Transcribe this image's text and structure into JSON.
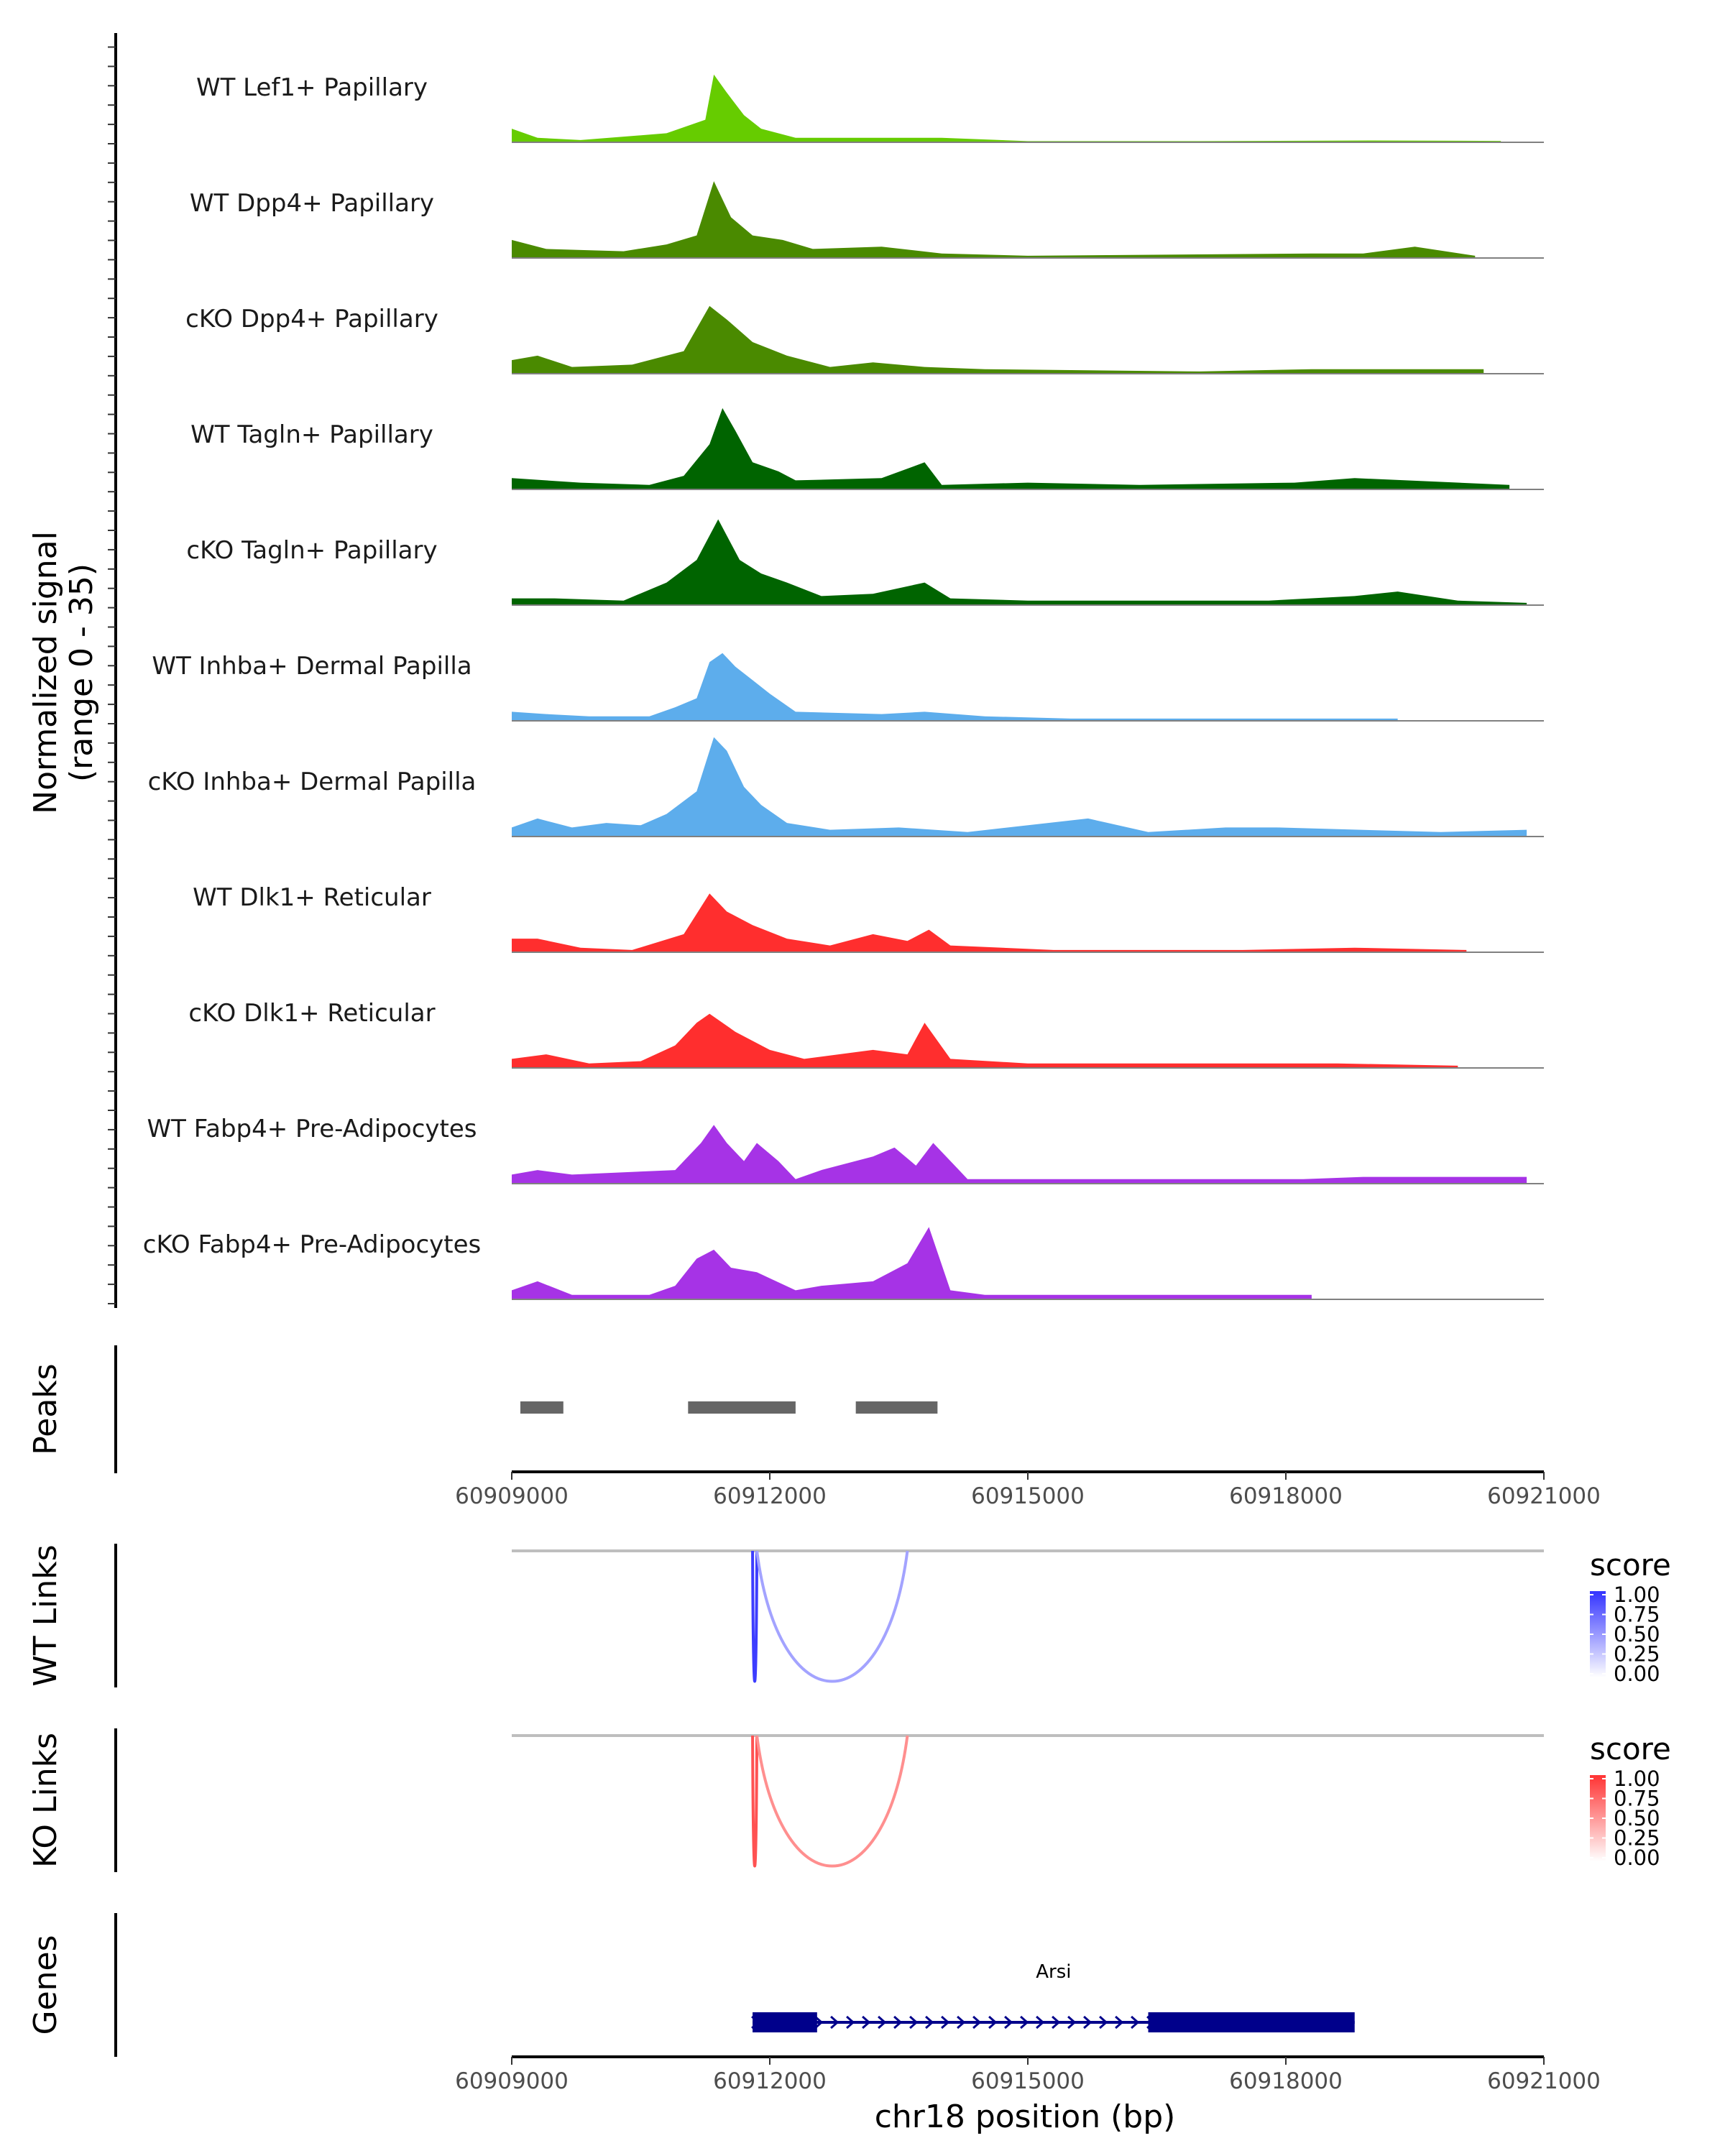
{
  "chart_data": [
    {
      "type": "area",
      "title": "",
      "ylabel_line1": "Normalized signal",
      "ylabel_line2": "(range 0 - 35)",
      "ylim": [
        0,
        35
      ],
      "xlim": [
        60909000,
        60921000
      ],
      "x_ticks": [
        60909000,
        60912000,
        60915000,
        60918000,
        60921000
      ],
      "x_tick_labels": [
        "60909000",
        "60912000",
        "60915000",
        "60918000",
        "60921000"
      ],
      "xlabel": "chr18 position (bp)",
      "tracks": [
        {
          "name": "WT Lef1+ Papillary",
          "color": "#66CC00",
          "values": [
            [
              60909000,
              6
            ],
            [
              60909300,
              2
            ],
            [
              60909800,
              1
            ],
            [
              60910800,
              4
            ],
            [
              60911250,
              10
            ],
            [
              60911350,
              30
            ],
            [
              60911500,
              22
            ],
            [
              60911700,
              12
            ],
            [
              60911900,
              6
            ],
            [
              60912300,
              2
            ],
            [
              60912900,
              2
            ],
            [
              60913500,
              2
            ],
            [
              60914000,
              2
            ],
            [
              60915000,
              0.5
            ],
            [
              60917000,
              0.5
            ],
            [
              60919000,
              0.8
            ],
            [
              60920500,
              0.6
            ]
          ]
        },
        {
          "name": "WT Dpp4+ Papillary",
          "color": "#4A8A00",
          "values": [
            [
              60909000,
              8
            ],
            [
              60909400,
              4
            ],
            [
              60910300,
              3
            ],
            [
              60910800,
              6
            ],
            [
              60911150,
              10
            ],
            [
              60911350,
              34
            ],
            [
              60911550,
              18
            ],
            [
              60911800,
              10
            ],
            [
              60912150,
              8
            ],
            [
              60912500,
              4
            ],
            [
              60913300,
              5
            ],
            [
              60914000,
              2
            ],
            [
              60915000,
              1
            ],
            [
              60918300,
              2
            ],
            [
              60918900,
              2
            ],
            [
              60919500,
              5
            ],
            [
              60920200,
              1
            ]
          ]
        },
        {
          "name": "cKO Dpp4+ Papillary",
          "color": "#4A8A00",
          "values": [
            [
              60909000,
              6
            ],
            [
              60909300,
              8
            ],
            [
              60909700,
              3
            ],
            [
              60910400,
              4
            ],
            [
              60911000,
              10
            ],
            [
              60911300,
              30
            ],
            [
              60911500,
              24
            ],
            [
              60911800,
              14
            ],
            [
              60912200,
              8
            ],
            [
              60912700,
              3
            ],
            [
              60913200,
              5
            ],
            [
              60913800,
              3
            ],
            [
              60914500,
              2
            ],
            [
              60917000,
              1
            ],
            [
              60918300,
              2
            ],
            [
              60919300,
              2
            ],
            [
              60920300,
              2
            ]
          ]
        },
        {
          "name": "WT Tagln+ Papillary",
          "color": "#006400",
          "values": [
            [
              60909000,
              5
            ],
            [
              60909800,
              3
            ],
            [
              60910600,
              2
            ],
            [
              60911000,
              6
            ],
            [
              60911300,
              20
            ],
            [
              60911450,
              36
            ],
            [
              60911600,
              26
            ],
            [
              60911800,
              12
            ],
            [
              60912100,
              8
            ],
            [
              60912300,
              4
            ],
            [
              60913300,
              5
            ],
            [
              60913800,
              12
            ],
            [
              60914000,
              2
            ],
            [
              60915000,
              3
            ],
            [
              60916300,
              2
            ],
            [
              60918100,
              3
            ],
            [
              60918800,
              5
            ],
            [
              60919400,
              4
            ],
            [
              60920600,
              2
            ]
          ]
        },
        {
          "name": "cKO Tagln+ Papillary",
          "color": "#006400",
          "values": [
            [
              60909000,
              3
            ],
            [
              60909500,
              3
            ],
            [
              60910300,
              2
            ],
            [
              60910800,
              10
            ],
            [
              60911150,
              20
            ],
            [
              60911400,
              38
            ],
            [
              60911650,
              20
            ],
            [
              60911900,
              14
            ],
            [
              60912200,
              10
            ],
            [
              60912600,
              4
            ],
            [
              60913200,
              5
            ],
            [
              60913800,
              10
            ],
            [
              60914100,
              3
            ],
            [
              60915000,
              2
            ],
            [
              60916500,
              2
            ],
            [
              60917800,
              2
            ],
            [
              60918800,
              4
            ],
            [
              60919300,
              6
            ],
            [
              60920000,
              2
            ],
            [
              60920800,
              1
            ]
          ]
        },
        {
          "name": "WT Inhba+ Dermal Papilla",
          "color": "#5DADEC",
          "values": [
            [
              60909000,
              4
            ],
            [
              60909400,
              3
            ],
            [
              60909900,
              2
            ],
            [
              60910600,
              2
            ],
            [
              60910900,
              6
            ],
            [
              60911150,
              10
            ],
            [
              60911300,
              26
            ],
            [
              60911450,
              30
            ],
            [
              60911600,
              24
            ],
            [
              60911800,
              18
            ],
            [
              60912000,
              12
            ],
            [
              60912300,
              4
            ],
            [
              60913300,
              3
            ],
            [
              60913800,
              4
            ],
            [
              60914500,
              2
            ],
            [
              60915500,
              1
            ],
            [
              60917500,
              1
            ],
            [
              60919300,
              1
            ]
          ]
        },
        {
          "name": "cKO Inhba+ Dermal Papilla",
          "color": "#5DADEC",
          "values": [
            [
              60909000,
              4
            ],
            [
              60909300,
              8
            ],
            [
              60909700,
              4
            ],
            [
              60910100,
              6
            ],
            [
              60910500,
              5
            ],
            [
              60910800,
              10
            ],
            [
              60911150,
              20
            ],
            [
              60911350,
              44
            ],
            [
              60911500,
              38
            ],
            [
              60911700,
              22
            ],
            [
              60911900,
              14
            ],
            [
              60912200,
              6
            ],
            [
              60912700,
              3
            ],
            [
              60913500,
              4
            ],
            [
              60914300,
              2
            ],
            [
              60915700,
              8
            ],
            [
              60916400,
              2
            ],
            [
              60917300,
              4
            ],
            [
              60917900,
              4
            ],
            [
              60919800,
              2
            ],
            [
              60920800,
              3
            ]
          ]
        },
        {
          "name": "WT Dlk1+ Reticular",
          "color": "#FF2E2E",
          "values": [
            [
              60909000,
              6
            ],
            [
              60909300,
              6
            ],
            [
              60909800,
              2
            ],
            [
              60910400,
              1
            ],
            [
              60911000,
              8
            ],
            [
              60911300,
              26
            ],
            [
              60911500,
              18
            ],
            [
              60911800,
              12
            ],
            [
              60912200,
              6
            ],
            [
              60912700,
              3
            ],
            [
              60913200,
              8
            ],
            [
              60913600,
              5
            ],
            [
              60913850,
              10
            ],
            [
              60914100,
              3
            ],
            [
              60915300,
              1
            ],
            [
              60917500,
              1
            ],
            [
              60918800,
              2
            ],
            [
              60920100,
              1
            ]
          ]
        },
        {
          "name": "cKO Dlk1+ Reticular",
          "color": "#FF2E2E",
          "values": [
            [
              60909000,
              4
            ],
            [
              60909400,
              6
            ],
            [
              60909900,
              2
            ],
            [
              60910500,
              3
            ],
            [
              60910900,
              10
            ],
            [
              60911150,
              20
            ],
            [
              60911300,
              24
            ],
            [
              60911600,
              16
            ],
            [
              60912000,
              8
            ],
            [
              60912400,
              4
            ],
            [
              60913200,
              8
            ],
            [
              60913600,
              6
            ],
            [
              60913800,
              20
            ],
            [
              60914100,
              4
            ],
            [
              60915000,
              2
            ],
            [
              60916500,
              2
            ],
            [
              60917500,
              2
            ],
            [
              60918600,
              2
            ],
            [
              60920000,
              1
            ]
          ]
        },
        {
          "name": "WT Fabp4+ Pre-Adipocytes",
          "color": "#A633E6",
          "values": [
            [
              60909000,
              4
            ],
            [
              60909300,
              6
            ],
            [
              60909700,
              4
            ],
            [
              60910900,
              6
            ],
            [
              60911200,
              18
            ],
            [
              60911350,
              26
            ],
            [
              60911500,
              18
            ],
            [
              60911700,
              10
            ],
            [
              60911850,
              18
            ],
            [
              60912100,
              10
            ],
            [
              60912300,
              2
            ],
            [
              60912600,
              6
            ],
            [
              60913200,
              12
            ],
            [
              60913450,
              16
            ],
            [
              60913700,
              8
            ],
            [
              60913900,
              18
            ],
            [
              60914200,
              6
            ],
            [
              60914300,
              2
            ],
            [
              60917800,
              2
            ],
            [
              60918200,
              2
            ],
            [
              60918900,
              3
            ],
            [
              60920800,
              3
            ]
          ]
        },
        {
          "name": "cKO Fabp4+ Pre-Adipocytes",
          "color": "#A633E6",
          "values": [
            [
              60909000,
              4
            ],
            [
              60909300,
              8
            ],
            [
              60909700,
              2
            ],
            [
              60910600,
              2
            ],
            [
              60910900,
              6
            ],
            [
              60911150,
              18
            ],
            [
              60911350,
              22
            ],
            [
              60911550,
              14
            ],
            [
              60911850,
              12
            ],
            [
              60912300,
              4
            ],
            [
              60912600,
              6
            ],
            [
              60913200,
              8
            ],
            [
              60913600,
              16
            ],
            [
              60913850,
              32
            ],
            [
              60914100,
              4
            ],
            [
              60914500,
              2
            ],
            [
              60916400,
              2
            ],
            [
              60918300,
              2
            ]
          ]
        }
      ]
    },
    {
      "type": "ranges",
      "ylabel": "Peaks",
      "color": "#666666",
      "ranges": [
        [
          60909100,
          60909600
        ],
        [
          60911050,
          60912300
        ],
        [
          60913000,
          60913950
        ]
      ]
    },
    {
      "type": "arcs",
      "ylabel": "WT Links",
      "legend_title": "score",
      "legend_ticks": [
        "1.00",
        "0.75",
        "0.50",
        "0.25",
        "0.00"
      ],
      "color_high": "#3333FF",
      "color_low": "#FFFFFF",
      "links": [
        {
          "start": 60911800,
          "end": 60911850,
          "score": 0.95
        },
        {
          "start": 60911850,
          "end": 60913600,
          "score": 0.45
        }
      ]
    },
    {
      "type": "arcs",
      "ylabel": "KO Links",
      "legend_title": "score",
      "legend_ticks": [
        "1.00",
        "0.75",
        "0.50",
        "0.25",
        "0.00"
      ],
      "color_high": "#FF3333",
      "color_low": "#FFFFFF",
      "links": [
        {
          "start": 60911800,
          "end": 60911850,
          "score": 0.85
        },
        {
          "start": 60911850,
          "end": 60913600,
          "score": 0.55
        }
      ]
    },
    {
      "type": "gene",
      "ylabel": "Genes",
      "gene_name": "Arsi",
      "color": "#00008B",
      "gene_range": [
        60911800,
        60918800
      ],
      "exons": [
        [
          60911800,
          60912550
        ],
        [
          60916400,
          60918800
        ]
      ],
      "strand": "+",
      "xlabel": "chr18 position (bp)"
    }
  ]
}
